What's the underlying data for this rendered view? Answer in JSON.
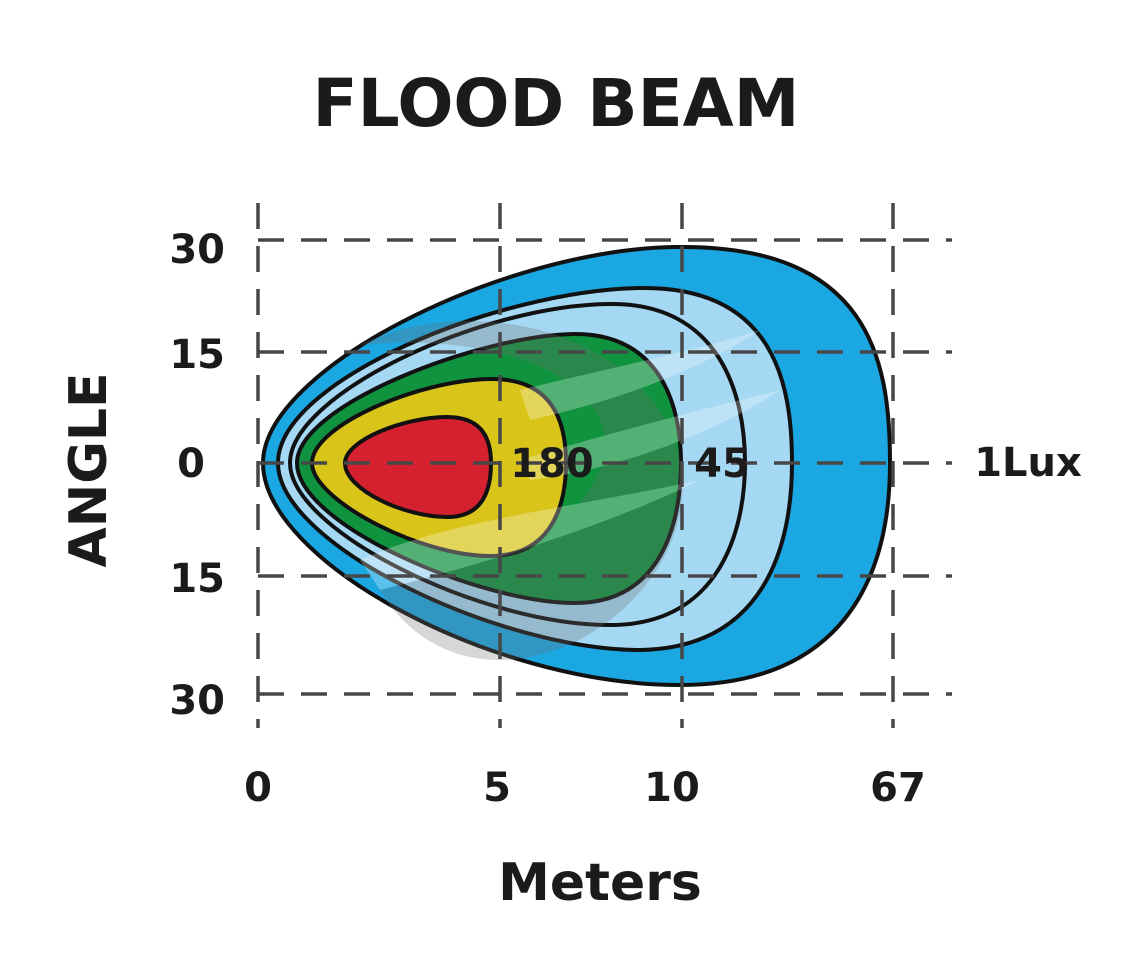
{
  "chart_data": {
    "type": "area",
    "title": "FLOOD BEAM",
    "xlabel": "Meters",
    "ylabel": "ANGLE",
    "x_ticks": [
      "0",
      "5",
      "10",
      "67"
    ],
    "y_ticks": [
      "30",
      "15",
      "0",
      "15",
      "30"
    ],
    "grid": true,
    "zones": [
      {
        "label": "1Lux",
        "reach_tick": "67",
        "color": "#1aa7e2"
      },
      {
        "label": "",
        "color": "#a5d8f3"
      },
      {
        "label": "45",
        "reach_tick": "10",
        "color": "#10933f"
      },
      {
        "label": "180",
        "reach_tick": "5",
        "color": "#d9c41a"
      },
      {
        "label": "",
        "color": "#d5202f"
      }
    ]
  }
}
